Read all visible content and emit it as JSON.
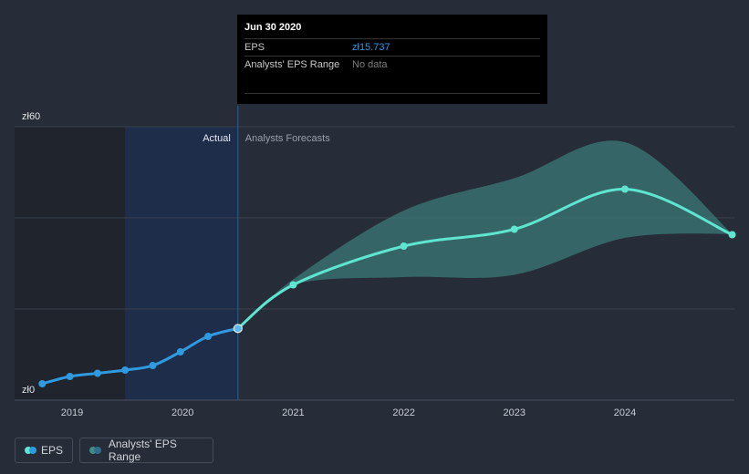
{
  "chart_data": {
    "type": "line",
    "currency_prefix": "zł",
    "y_tick_labels": [
      "zł60",
      "zł0"
    ],
    "ylim": [
      0,
      60
    ],
    "x_tick_labels": [
      "2019",
      "2020",
      "2021",
      "2022",
      "2023",
      "2024"
    ],
    "xlim": [
      2018.65,
      2024.97
    ],
    "actual_label": "Actual",
    "forecast_label": "Analysts Forecasts",
    "divider_x": 2020.5,
    "shade_start_x": 2019.48,
    "series": [
      {
        "name": "EPS",
        "role": "actual",
        "color": "#2f9ae0",
        "points": [
          [
            2018.73,
            3.6
          ],
          [
            2018.98,
            5.2
          ],
          [
            2019.23,
            5.9
          ],
          [
            2019.48,
            6.6
          ],
          [
            2019.73,
            7.6
          ],
          [
            2019.98,
            10.6
          ],
          [
            2020.23,
            14.0
          ],
          [
            2020.5,
            15.737
          ]
        ]
      },
      {
        "name": "EPS",
        "role": "forecast",
        "color": "#5ee6d0",
        "points": [
          [
            2020.5,
            15.737
          ],
          [
            2021.0,
            25.3
          ],
          [
            2022.0,
            33.8
          ],
          [
            2023.0,
            37.5
          ],
          [
            2024.0,
            46.3
          ],
          [
            2024.97,
            36.3
          ]
        ]
      },
      {
        "name": "Analysts' EPS Range",
        "role": "range",
        "color": "#3f8c86",
        "x": [
          2020.5,
          2021.0,
          2022.0,
          2023.0,
          2024.0,
          2024.97
        ],
        "low": [
          15.737,
          25.3,
          27.0,
          27.5,
          35.6,
          36.5
        ],
        "high": [
          15.737,
          26.5,
          41.6,
          48.7,
          56.6,
          36.5
        ]
      }
    ]
  },
  "tooltip": {
    "date": "Jun 30 2020",
    "eps_label": "EPS",
    "eps_value": "zł15.737",
    "range_label": "Analysts' EPS Range",
    "range_value": "No data"
  },
  "legend": {
    "eps": "EPS",
    "range": "Analysts' EPS Range"
  },
  "colors": {
    "background": "#262c38",
    "grid": "#3a404c",
    "past_shade": "#1f242d",
    "actual_band": "#1c2e4e",
    "divider": "#2e5d97"
  }
}
